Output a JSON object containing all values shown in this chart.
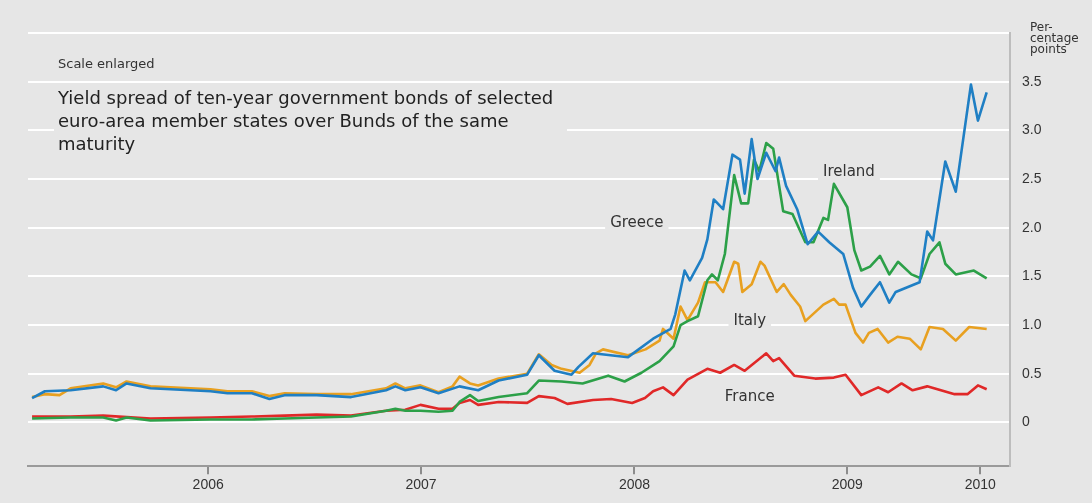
{
  "chart_data": {
    "type": "line",
    "title": "Yield spread of ten-year government bonds of selected euro-area member states over Bunds of the same maturity",
    "subtitle": "Scale enlarged",
    "ylabel": "Per-\ncentage\npoints",
    "xlim": [
      "2005-08-27",
      "2010-04-07"
    ],
    "xticks": [
      {
        "value": "2006-07-02",
        "label": "2006"
      },
      {
        "value": "2007-07-02",
        "label": "2007"
      },
      {
        "value": "2008-07-02",
        "label": "2008"
      },
      {
        "value": "2009-07-02",
        "label": "2009"
      },
      {
        "value": "2010-02-15",
        "label": "2010"
      }
    ],
    "ylim": [
      -0.45,
      4
    ],
    "yticks": [
      0,
      0.5,
      {
        "value": 1,
        "label": "1.0"
      },
      1.5,
      {
        "value": 2,
        "label": "2.0"
      },
      2.5,
      {
        "value": 3,
        "label": "3.0"
      },
      3.5,
      {
        "value": 4,
        "label": null
      }
    ],
    "grid": "y",
    "legend": false,
    "marker": "none",
    "line_style": "solid",
    "series": [
      {
        "name": "Greece",
        "color": "#1f7fc4",
        "x": [
          "2005-09-03",
          "2005-09-25",
          "2005-11-08",
          "2006-01-03",
          "2006-01-25",
          "2006-02-12",
          "2006-03-25",
          "2006-07-06",
          "2006-08-04",
          "2006-09-15",
          "2006-10-15",
          "2006-11-10",
          "2007-01-04",
          "2007-03-04",
          "2007-05-03",
          "2007-05-19",
          "2007-06-05",
          "2007-07-01",
          "2007-08-01",
          "2007-09-06",
          "2007-10-08",
          "2007-11-12",
          "2007-12-31",
          "2008-01-20",
          "2008-02-16",
          "2008-03-16",
          "2008-03-28",
          "2008-04-22",
          "2008-06-21",
          "2008-08-03",
          "2008-09-02",
          "2008-09-10",
          "2008-09-26",
          "2008-10-05",
          "2008-10-26",
          "2008-11-04",
          "2008-11-15",
          "2008-12-01",
          "2008-12-17",
          "2008-12-30",
          "2009-01-07",
          "2009-01-19",
          "2009-01-29",
          "2009-02-13",
          "2009-03-01",
          "2009-03-07",
          "2009-03-19",
          "2009-04-07",
          "2009-04-25",
          "2009-05-13",
          "2009-06-01",
          "2009-06-25",
          "2009-07-12",
          "2009-07-26",
          "2009-08-10",
          "2009-08-27",
          "2009-09-12",
          "2009-09-23",
          "2009-11-03",
          "2009-11-16",
          "2009-11-26",
          "2009-12-17",
          "2010-01-04",
          "2010-01-30",
          "2010-02-11",
          "2010-02-26"
        ],
        "values": [
          0.25,
          0.32,
          0.33,
          0.37,
          0.33,
          0.4,
          0.35,
          0.32,
          0.3,
          0.3,
          0.24,
          0.28,
          0.28,
          0.26,
          0.33,
          0.37,
          0.33,
          0.36,
          0.3,
          0.37,
          0.33,
          0.43,
          0.49,
          0.69,
          0.53,
          0.49,
          0.57,
          0.71,
          0.67,
          0.86,
          0.96,
          1.11,
          1.56,
          1.46,
          1.69,
          1.88,
          2.29,
          2.19,
          2.75,
          2.7,
          2.35,
          2.91,
          2.5,
          2.77,
          2.58,
          2.72,
          2.43,
          2.19,
          1.83,
          1.96,
          1.85,
          1.73,
          1.38,
          1.19,
          1.31,
          1.44,
          1.23,
          1.34,
          1.44,
          1.96,
          1.87,
          2.68,
          2.37,
          3.47,
          3.1,
          3.39
        ]
      },
      {
        "name": "Ireland",
        "color": "#2ca048",
        "x": [
          "2005-09-03",
          "2005-11-08",
          "2006-01-03",
          "2006-01-25",
          "2006-02-12",
          "2006-03-25",
          "2006-07-06",
          "2006-09-15",
          "2006-11-10",
          "2007-01-04",
          "2007-03-04",
          "2007-05-03",
          "2007-05-19",
          "2007-06-05",
          "2007-07-01",
          "2007-08-01",
          "2007-08-25",
          "2007-09-06",
          "2007-09-24",
          "2007-10-08",
          "2007-11-12",
          "2007-12-31",
          "2008-01-20",
          "2008-02-28",
          "2008-04-04",
          "2008-05-18",
          "2008-06-15",
          "2008-07-14",
          "2008-08-14",
          "2008-09-07",
          "2008-09-19",
          "2008-10-01",
          "2008-10-19",
          "2008-11-04",
          "2008-11-12",
          "2008-11-22",
          "2008-12-04",
          "2008-12-20",
          "2009-01-01",
          "2009-01-13",
          "2009-01-23",
          "2009-02-01",
          "2009-02-13",
          "2009-02-25",
          "2009-03-14",
          "2009-03-30",
          "2009-04-21",
          "2009-05-05",
          "2009-05-22",
          "2009-05-30",
          "2009-06-09",
          "2009-07-02",
          "2009-07-14",
          "2009-07-26",
          "2009-08-10",
          "2009-08-27",
          "2009-09-12",
          "2009-09-27",
          "2009-10-20",
          "2009-11-05",
          "2009-11-20",
          "2009-12-07",
          "2009-12-17",
          "2010-01-04",
          "2010-02-04",
          "2010-02-26"
        ],
        "values": [
          0.04,
          0.05,
          0.05,
          0.02,
          0.05,
          0.02,
          0.03,
          0.03,
          0.04,
          0.05,
          0.06,
          0.12,
          0.14,
          0.12,
          0.12,
          0.11,
          0.12,
          0.21,
          0.28,
          0.22,
          0.26,
          0.3,
          0.43,
          0.42,
          0.4,
          0.48,
          0.42,
          0.51,
          0.63,
          0.78,
          1.0,
          1.04,
          1.09,
          1.46,
          1.52,
          1.46,
          1.73,
          2.54,
          2.25,
          2.25,
          2.7,
          2.58,
          2.87,
          2.81,
          2.17,
          2.14,
          1.85,
          1.85,
          2.1,
          2.08,
          2.45,
          2.21,
          1.77,
          1.56,
          1.6,
          1.71,
          1.52,
          1.65,
          1.52,
          1.48,
          1.73,
          1.85,
          1.63,
          1.52,
          1.56,
          1.48
        ]
      },
      {
        "name": "Italy",
        "color": "#e8a020",
        "x": [
          "2005-09-03",
          "2005-09-25",
          "2005-10-20",
          "2005-11-08",
          "2006-01-03",
          "2006-01-25",
          "2006-02-12",
          "2006-03-25",
          "2006-07-06",
          "2006-08-04",
          "2006-09-15",
          "2006-10-15",
          "2006-11-10",
          "2007-01-04",
          "2007-03-04",
          "2007-05-03",
          "2007-05-19",
          "2007-06-05",
          "2007-07-01",
          "2007-08-01",
          "2007-08-25",
          "2007-09-06",
          "2007-09-24",
          "2007-10-08",
          "2007-11-12",
          "2007-12-31",
          "2008-01-20",
          "2008-02-11",
          "2008-02-28",
          "2008-03-30",
          "2008-04-16",
          "2008-04-27",
          "2008-05-09",
          "2008-06-21",
          "2008-07-21",
          "2008-08-14",
          "2008-08-20",
          "2008-09-07",
          "2008-09-19",
          "2008-10-01",
          "2008-10-19",
          "2008-10-31",
          "2008-11-18",
          "2008-12-01",
          "2008-12-20",
          "2008-12-27",
          "2009-01-03",
          "2009-01-19",
          "2009-02-03",
          "2009-02-10",
          "2009-03-03",
          "2009-03-15",
          "2009-03-27",
          "2009-04-12",
          "2009-04-21",
          "2009-05-22",
          "2009-06-09",
          "2009-06-18",
          "2009-06-29",
          "2009-07-16",
          "2009-07-29",
          "2009-08-08",
          "2009-08-23",
          "2009-09-10",
          "2009-09-26",
          "2009-10-17",
          "2009-11-05",
          "2009-11-20",
          "2009-12-13",
          "2010-01-04",
          "2010-01-27",
          "2010-02-26"
        ],
        "values": [
          0.26,
          0.29,
          0.28,
          0.35,
          0.4,
          0.36,
          0.42,
          0.37,
          0.34,
          0.32,
          0.32,
          0.27,
          0.3,
          0.29,
          0.29,
          0.35,
          0.4,
          0.35,
          0.38,
          0.31,
          0.37,
          0.47,
          0.4,
          0.38,
          0.45,
          0.5,
          0.7,
          0.59,
          0.55,
          0.51,
          0.59,
          0.71,
          0.75,
          0.69,
          0.75,
          0.84,
          0.96,
          0.86,
          1.19,
          1.05,
          1.23,
          1.44,
          1.44,
          1.34,
          1.65,
          1.63,
          1.34,
          1.42,
          1.65,
          1.61,
          1.34,
          1.42,
          1.31,
          1.19,
          1.04,
          1.21,
          1.27,
          1.21,
          1.21,
          0.92,
          0.82,
          0.92,
          0.96,
          0.82,
          0.88,
          0.86,
          0.75,
          0.98,
          0.96,
          0.84,
          0.98,
          0.96
        ]
      },
      {
        "name": "France",
        "color": "#e02828",
        "x": [
          "2005-09-03",
          "2005-11-08",
          "2006-01-03",
          "2006-03-25",
          "2006-07-06",
          "2006-09-15",
          "2006-11-10",
          "2007-01-04",
          "2007-03-04",
          "2007-05-03",
          "2007-06-05",
          "2007-07-01",
          "2007-08-01",
          "2007-08-25",
          "2007-09-06",
          "2007-09-24",
          "2007-10-08",
          "2007-11-12",
          "2007-12-31",
          "2008-01-20",
          "2008-02-16",
          "2008-03-09",
          "2008-04-22",
          "2008-05-23",
          "2008-06-28",
          "2008-07-20",
          "2008-08-03",
          "2008-08-20",
          "2008-09-07",
          "2008-10-01",
          "2008-11-04",
          "2008-11-26",
          "2008-12-20",
          "2009-01-07",
          "2009-02-13",
          "2009-02-25",
          "2009-03-07",
          "2009-04-02",
          "2009-05-08",
          "2009-06-09",
          "2009-06-29",
          "2009-07-26",
          "2009-08-24",
          "2009-09-10",
          "2009-10-03",
          "2009-10-22",
          "2009-11-16",
          "2010-01-02",
          "2010-01-24",
          "2010-02-11",
          "2010-02-26"
        ],
        "values": [
          0.06,
          0.06,
          0.07,
          0.04,
          0.05,
          0.06,
          0.07,
          0.08,
          0.07,
          0.12,
          0.13,
          0.18,
          0.14,
          0.14,
          0.2,
          0.23,
          0.18,
          0.21,
          0.2,
          0.27,
          0.25,
          0.19,
          0.23,
          0.24,
          0.2,
          0.25,
          0.32,
          0.36,
          0.28,
          0.44,
          0.55,
          0.51,
          0.59,
          0.53,
          0.71,
          0.63,
          0.66,
          0.48,
          0.45,
          0.46,
          0.49,
          0.28,
          0.36,
          0.31,
          0.4,
          0.33,
          0.37,
          0.29,
          0.29,
          0.38,
          0.34
        ]
      }
    ]
  }
}
